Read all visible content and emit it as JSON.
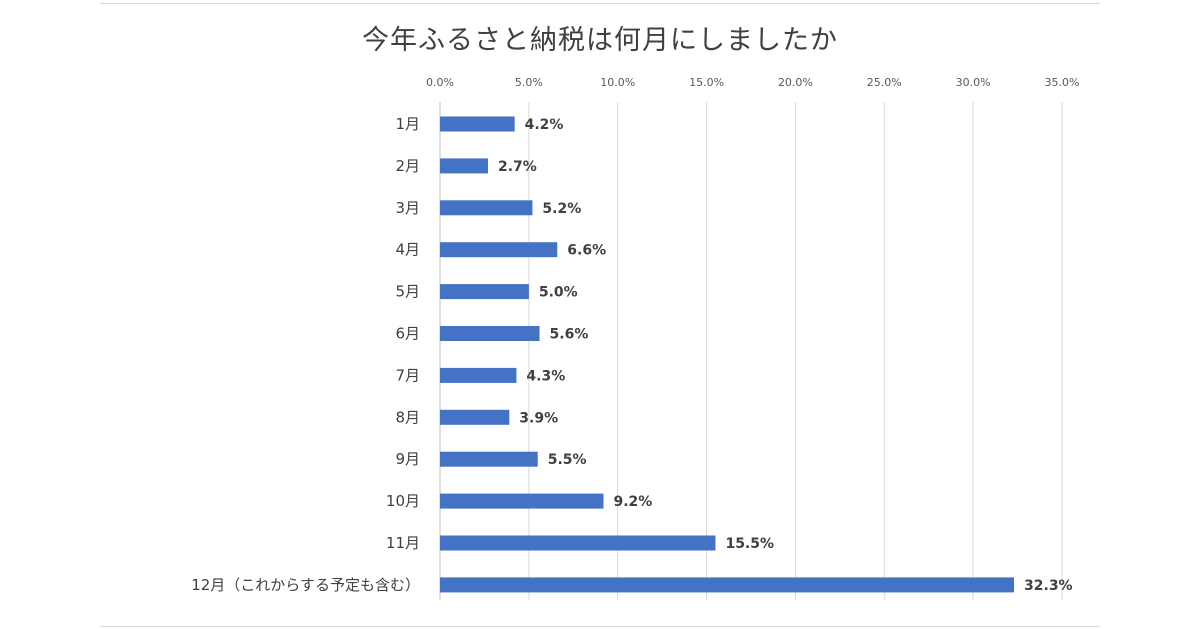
{
  "chart_data": {
    "type": "bar",
    "orientation": "horizontal",
    "title": "今年ふるさと納税は何月にしましたか",
    "categories": [
      "1月",
      "2月",
      "3月",
      "4月",
      "5月",
      "6月",
      "7月",
      "8月",
      "9月",
      "10月",
      "11月",
      "12月（これからする予定も含む）"
    ],
    "values": [
      4.2,
      2.7,
      5.2,
      6.6,
      5.0,
      5.6,
      4.3,
      3.9,
      5.5,
      9.2,
      15.5,
      32.3
    ],
    "data_labels": [
      "4.2%",
      "2.7%",
      "5.2%",
      "6.6%",
      "5.0%",
      "5.6%",
      "4.3%",
      "3.9%",
      "5.5%",
      "9.2%",
      "15.5%",
      "32.3%"
    ],
    "xlim": [
      0,
      35
    ],
    "x_ticks": [
      0,
      5,
      10,
      15,
      20,
      25,
      30,
      35
    ],
    "x_tick_labels": [
      "0.0%",
      "5.0%",
      "10.0%",
      "15.0%",
      "20.0%",
      "25.0%",
      "30.0%",
      "35.0%"
    ],
    "x_axis_position": "top",
    "grid": true,
    "legend": "none",
    "bar_color": "#4472C4"
  }
}
